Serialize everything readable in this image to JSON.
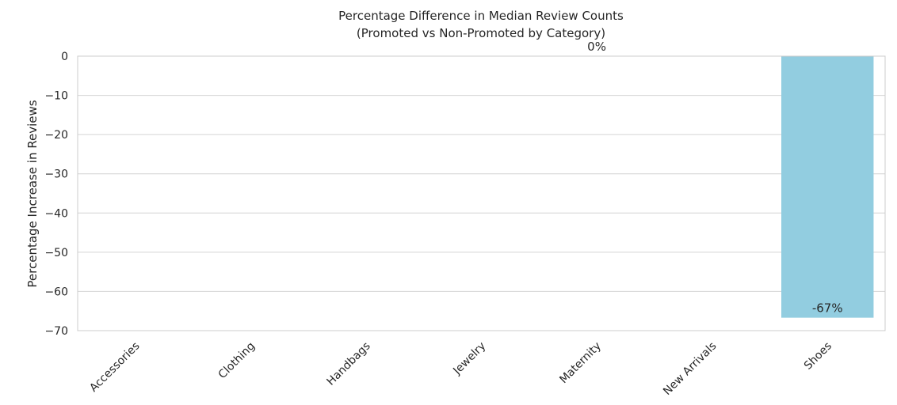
{
  "chart_data": {
    "type": "bar",
    "title": "Percentage Difference in Median Review Counts",
    "subtitle": "(Promoted vs Non-Promoted by Category)",
    "xlabel": "",
    "ylabel": "Percentage Increase in Reviews",
    "categories": [
      "Accessories",
      "Clothing",
      "Handbags",
      "Jewelry",
      "Maternity",
      "New Arrivals",
      "Shoes"
    ],
    "values": [
      null,
      null,
      null,
      null,
      null,
      null,
      -66.7
    ],
    "ylim": [
      -70,
      0
    ],
    "yticks": [
      0,
      -10,
      -20,
      -30,
      -40,
      -50,
      -60,
      -70
    ],
    "ytick_labels": [
      "0",
      "−10",
      "−20",
      "−30",
      "−40",
      "−50",
      "−60",
      "−70"
    ],
    "annotations": [
      {
        "text": "0%",
        "x": "Maternity",
        "y": 0
      },
      {
        "text": "-67%",
        "x": "Shoes",
        "y": -66.7
      }
    ],
    "zero_line": true,
    "grid": true,
    "bar_color": "#92cde0"
  }
}
